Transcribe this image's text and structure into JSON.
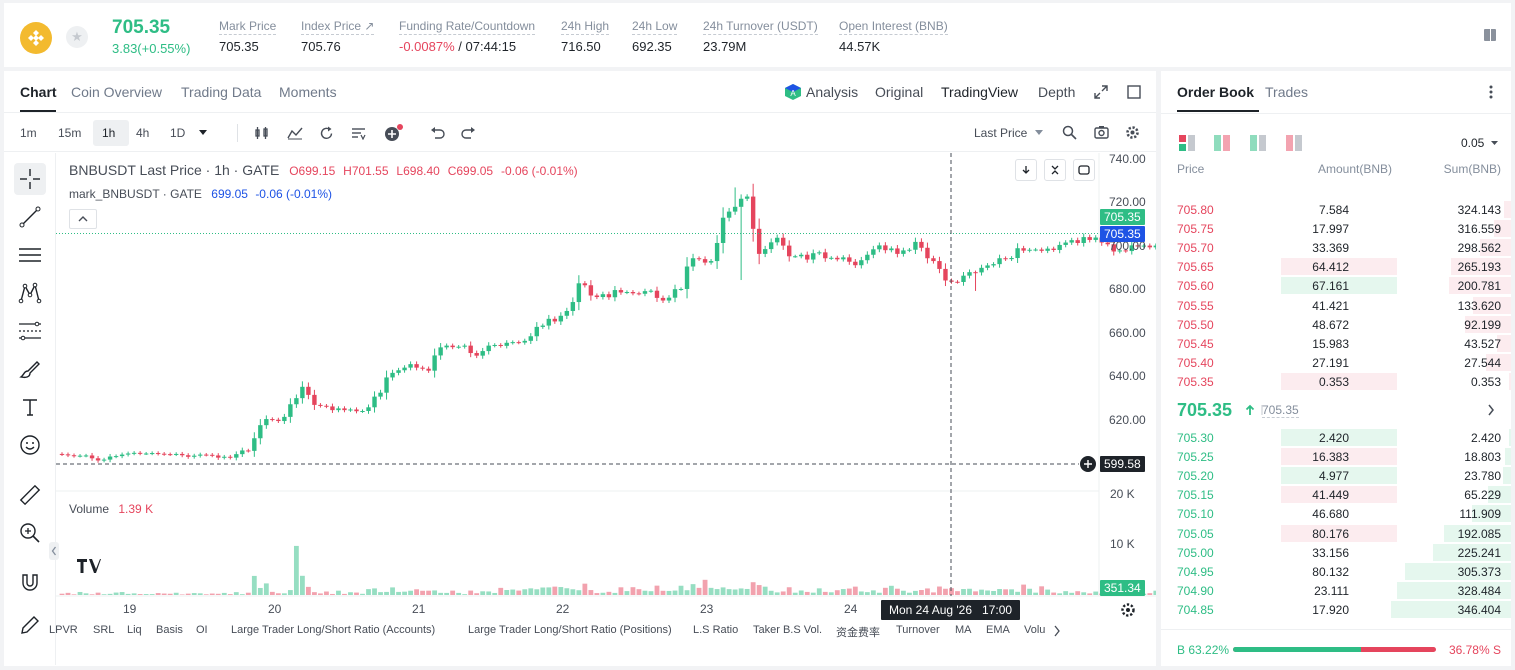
{
  "header": {
    "last_price": "705.35",
    "change": "3.83(+0.55%)",
    "stats": [
      {
        "label": "Mark Price",
        "value": "705.35"
      },
      {
        "label": "Index Price ↗",
        "value": "705.76"
      },
      {
        "label": "Funding Rate/Countdown",
        "value": "-0.0087%",
        "value2": " / 07:44:15"
      },
      {
        "label": "24h High",
        "value": "716.50"
      },
      {
        "label": "24h Low",
        "value": "692.35"
      },
      {
        "label": "24h Turnover (USDT)",
        "value": "23.79M"
      },
      {
        "label": "Open Interest (BNB)",
        "value": "44.57K"
      }
    ]
  },
  "chart_tabs": [
    "Chart",
    "Coin Overview",
    "Trading Data",
    "Moments"
  ],
  "view_tabs": [
    "Analysis",
    "Original",
    "TradingView",
    "Depth"
  ],
  "timeframes": [
    "1m",
    "15m",
    "1h",
    "4h",
    "1D"
  ],
  "price_source": "Last Price",
  "legend": {
    "symbol": "BNBUSDT Last Price · 1h · GATE",
    "o": "O699.15",
    "h": "H701.55",
    "l": "L698.40",
    "c": "C699.05",
    "chg": "-0.06 (-0.01%)",
    "mark_label": "mark_BNBUSDT · GATE",
    "mark_value": "699.05",
    "mark_chg": "-0.06 (-0.01%)",
    "volume_label": "Volume",
    "volume_value": "1.39 K"
  },
  "price_axis": [
    "740.00",
    "720.00",
    "700.00",
    "680.00",
    "660.00",
    "640.00",
    "620.00"
  ],
  "volume_axis": [
    "20 K",
    "10 K"
  ],
  "date_axis": [
    "19",
    "20",
    "21",
    "22",
    "23",
    "24"
  ],
  "tags": {
    "last": "705.35",
    "mark": "705.35",
    "cursor": "599.58",
    "volume": "351.34",
    "time": "Mon 24 Aug '26   17:00"
  },
  "bottom_tools": [
    "LPVR",
    "SRL",
    "Liq",
    "Basis",
    "OI",
    "Large Trader Long/Short Ratio (Accounts)",
    "Large Trader Long/Short Ratio (Positions)",
    "L.S Ratio",
    "Taker B.S Vol.",
    "资金费率",
    "Turnover",
    "MA",
    "EMA",
    "Volu"
  ],
  "colors": {
    "up": "#2ebd85",
    "down": "#e5455d",
    "mark_blue": "#1e53e5"
  },
  "chart_data": {
    "type": "candlestick",
    "x_start": "Aug 18 '26 21:00",
    "interval": "1h",
    "ylim": [
      599.58,
      740
    ],
    "close": [
      604.0,
      603.6,
      603.3,
      603.4,
      603.5,
      602.2,
      601.2,
      601.6,
      603.0,
      603.2,
      603.9,
      604.4,
      604.7,
      604.4,
      604.4,
      604.6,
      604.3,
      604.1,
      604.0,
      604.2,
      603.6,
      602.9,
      603.4,
      603.9,
      603.8,
      603.5,
      602.5,
      602.9,
      602.5,
      604.1,
      605.8,
      605.6,
      611.4,
      617.4,
      620.2,
      619.9,
      619.3,
      621.2,
      627.0,
      629.8,
      635.0,
      631.3,
      626.7,
      626.3,
      626.0,
      624.3,
      625.1,
      624.3,
      624.6,
      623.8,
      623.9,
      625.6,
      630.5,
      632.3,
      639.3,
      641.4,
      642.6,
      643.8,
      645.4,
      643.8,
      643.3,
      642.4,
      649.4,
      653.1,
      653.9,
      653.2,
      653.4,
      653.9,
      650.5,
      649.3,
      651.4,
      653.9,
      654.2,
      653.8,
      655.2,
      655.5,
      655.3,
      656.1,
      658.2,
      662.5,
      663.1,
      666.2,
      665.0,
      667.6,
      669.8,
      673.9,
      682.5,
      681.6,
      676.9,
      676.2,
      677.5,
      676.1,
      679.4,
      678.3,
      678.5,
      677.9,
      677.7,
      678.9,
      679.1,
      675.8,
      674.6,
      675.9,
      679.8,
      679.9,
      690.2,
      694.0,
      693.6,
      692.0,
      692.7,
      701.0,
      712.6,
      715.4,
      717.6,
      721.3,
      722.3,
      707.5,
      696.0,
      698.2,
      701.3,
      703.4,
      699.8,
      694.9,
      694.9,
      695.6,
      693.4,
      696.3,
      696.7,
      694.0,
      694.2,
      693.5,
      694.4,
      692.4,
      690.8,
      693.1,
      695.6,
      698.1,
      699.9,
      697.7,
      698.5,
      696.0,
      697.6,
      697.9,
      701.5,
      698.8,
      694.0,
      692.7,
      689.1,
      683.8,
      683.2,
      683.1,
      686.0,
      687.6,
      687.5,
      689.6,
      690.7,
      691.3,
      694.0,
      693.6,
      694.1,
      698.6,
      697.5,
      697.9,
      698.0,
      697.4,
      698.4,
      697.8,
      700.1,
      701.2,
      702.3,
      701.0,
      703.7,
      702.4,
      703.5,
      701.2,
      700.4,
      697.1,
      697.6,
      697.3,
      699.9,
      699.4,
      699.8,
      699.0,
      699.8,
      699.6,
      697.5,
      696.2,
      699.1,
      700.7,
      703.3,
      700.8,
      702.3,
      702.4,
      705.7,
      705.8,
      703.7,
      701.0,
      701.2,
      700.9,
      703.2,
      704.0,
      702.2,
      701.8,
      702.0,
      704.6,
      705.35
    ],
    "volume": [
      250,
      410,
      120,
      580,
      320,
      130,
      450,
      140,
      220,
      470,
      570,
      210,
      310,
      180,
      180,
      170,
      370,
      280,
      240,
      430,
      100,
      260,
      370,
      320,
      130,
      280,
      230,
      400,
      170,
      550,
      160,
      440,
      3670,
      1350,
      2230,
      600,
      330,
      320,
      950,
      9440,
      3690,
      1560,
      550,
      300,
      670,
      200,
      830,
      210,
      530,
      470,
      230,
      1130,
      1270,
      550,
      590,
      1460,
      590,
      640,
      820,
      1100,
      810,
      830,
      880,
      410,
      400,
      840,
      400,
      160,
      850,
      340,
      710,
      680,
      390,
      1370,
      960,
      1050,
      850,
      1100,
      1280,
      1100,
      1440,
      1460,
      1610,
      1530,
      1300,
      1100,
      920,
      2180,
      950,
      370,
      430,
      610,
      400,
      1480,
      750,
      1500,
      1120,
      820,
      730,
      1800,
      810,
      780,
      850,
      1780,
      920,
      2090,
      1370,
      2920,
      1370,
      1140,
      1460,
      1130,
      1060,
      1260,
      1160,
      2460,
      1910,
      1600,
      810,
      500,
      680,
      1490,
      440,
      870,
      590,
      450,
      1280,
      600,
      520,
      920,
      1140,
      1240,
      1610,
      680,
      550,
      890,
      430,
      1380,
      1770,
      1210,
      820,
      440,
      790,
      960,
      1260,
      500,
      1630,
      1200,
      1320,
      740,
      1150,
      1200,
      700,
      1030,
      870,
      770,
      1150,
      1090,
      1090,
      610,
      2000,
      1200,
      450,
      1670,
      1040,
      470,
      320,
      740,
      420,
      730,
      520,
      310,
      660,
      280,
      350,
      420,
      290,
      640,
      590,
      900,
      250,
      350,
      830,
      620,
      550,
      470,
      770,
      1410,
      1150,
      1370,
      1840,
      1240,
      520,
      1010,
      470,
      550,
      240,
      790,
      830,
      530,
      720,
      310,
      440,
      330,
      320
    ]
  },
  "orderbook": {
    "tabs": [
      "Order Book",
      "Trades"
    ],
    "precision": "0.05",
    "columns": [
      "Price",
      "Amount(BNB)",
      "Sum(BNB)"
    ],
    "asks": [
      {
        "price": "705.80",
        "amount": "7.584",
        "sum": "324.143",
        "frac": 0.059
      },
      {
        "price": "705.75",
        "amount": "17.997",
        "sum": "316.559",
        "frac": 0.14
      },
      {
        "price": "705.70",
        "amount": "33.369",
        "sum": "298.562",
        "frac": 0.26
      },
      {
        "price": "705.65",
        "amount": "64.412",
        "sum": "265.193",
        "frac": 0.5,
        "hl": true
      },
      {
        "price": "705.60",
        "amount": "67.161",
        "sum": "200.781",
        "frac": 0.52,
        "hl": true,
        "green": true
      },
      {
        "price": "705.55",
        "amount": "41.421",
        "sum": "133.620",
        "frac": 0.32
      },
      {
        "price": "705.50",
        "amount": "48.672",
        "sum": "92.199",
        "frac": 0.38
      },
      {
        "price": "705.45",
        "amount": "15.983",
        "sum": "43.527",
        "frac": 0.12
      },
      {
        "price": "705.40",
        "amount": "27.191",
        "sum": "27.544",
        "frac": 0.21
      },
      {
        "price": "705.35",
        "amount": "0.353",
        "sum": "0.353",
        "frac": 0.003,
        "hl": true
      }
    ],
    "mid_price": "705.35",
    "mid_mark": "705.35",
    "bids": [
      {
        "price": "705.30",
        "amount": "2.420",
        "sum": "2.420",
        "frac": 0.007,
        "hl": true,
        "green": true
      },
      {
        "price": "705.25",
        "amount": "16.383",
        "sum": "18.803",
        "frac": 0.054,
        "hl": true
      },
      {
        "price": "705.20",
        "amount": "4.977",
        "sum": "23.780",
        "frac": 0.069,
        "hl": true,
        "green": true
      },
      {
        "price": "705.15",
        "amount": "41.449",
        "sum": "65.229",
        "frac": 0.188,
        "hl": true
      },
      {
        "price": "705.10",
        "amount": "46.680",
        "sum": "111.909",
        "frac": 0.323
      },
      {
        "price": "705.05",
        "amount": "80.176",
        "sum": "192.085",
        "frac": 0.555,
        "hl": true
      },
      {
        "price": "705.00",
        "amount": "33.156",
        "sum": "225.241",
        "frac": 0.65
      },
      {
        "price": "704.95",
        "amount": "80.132",
        "sum": "305.373",
        "frac": 0.88
      },
      {
        "price": "704.90",
        "amount": "23.111",
        "sum": "328.484",
        "frac": 0.95
      },
      {
        "price": "704.85",
        "amount": "17.920",
        "sum": "346.404",
        "frac": 1.0
      }
    ],
    "buy_ratio": "B 63.22%",
    "sell_ratio": "36.78% S",
    "buy_frac": 0.6322
  }
}
